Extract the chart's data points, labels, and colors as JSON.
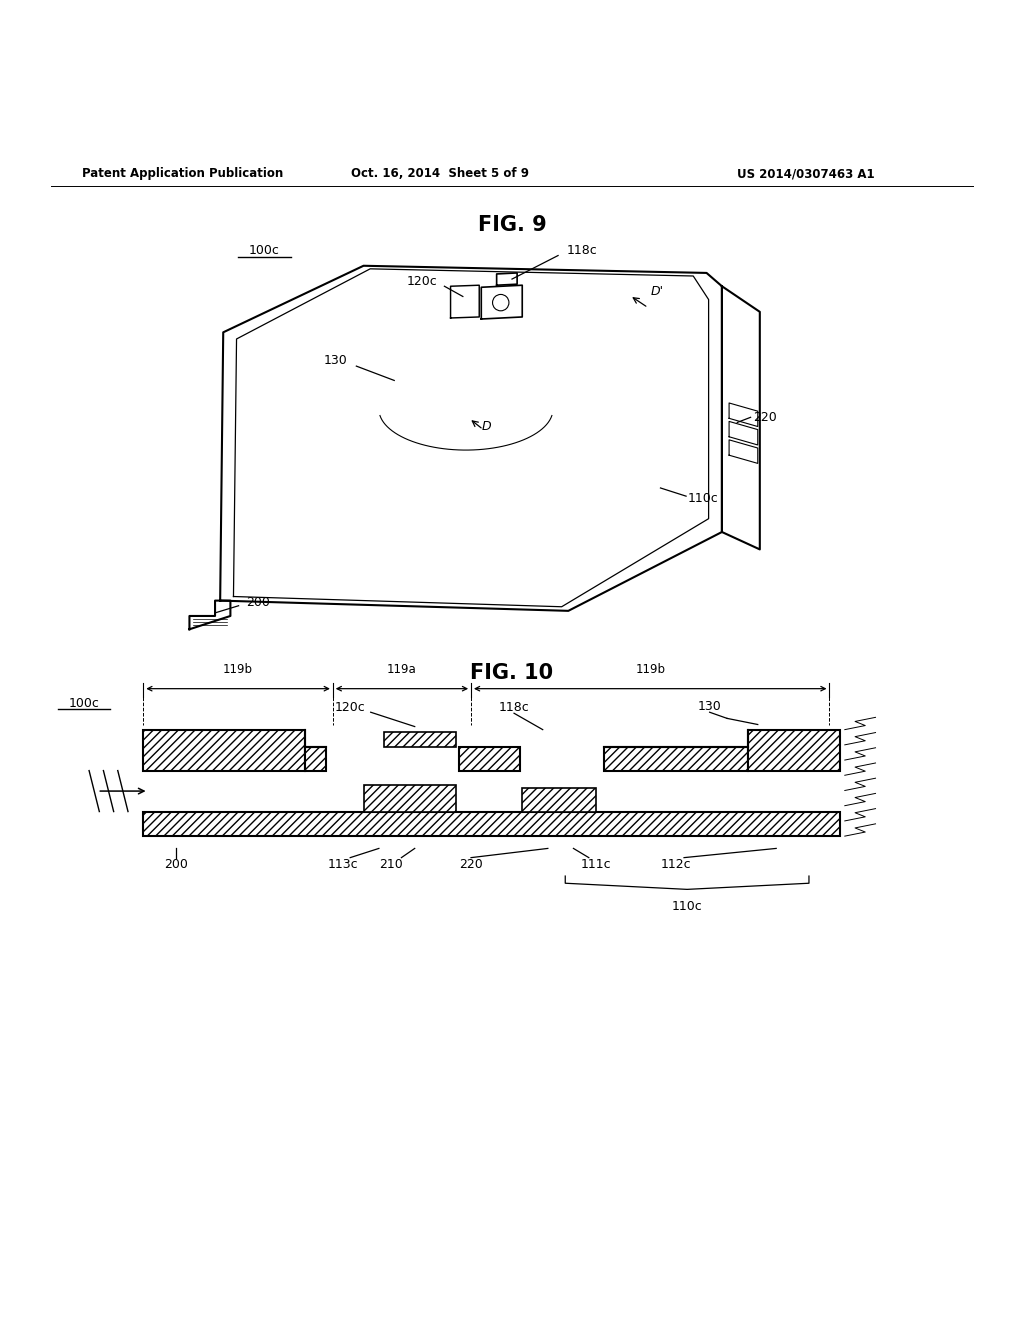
{
  "bg_color": "#ffffff",
  "header_left": "Patent Application Publication",
  "header_mid": "Oct. 16, 2014  Sheet 5 of 9",
  "header_right": "US 2014/0307463 A1",
  "fig9_title": "FIG. 9",
  "fig10_title": "FIG. 10"
}
